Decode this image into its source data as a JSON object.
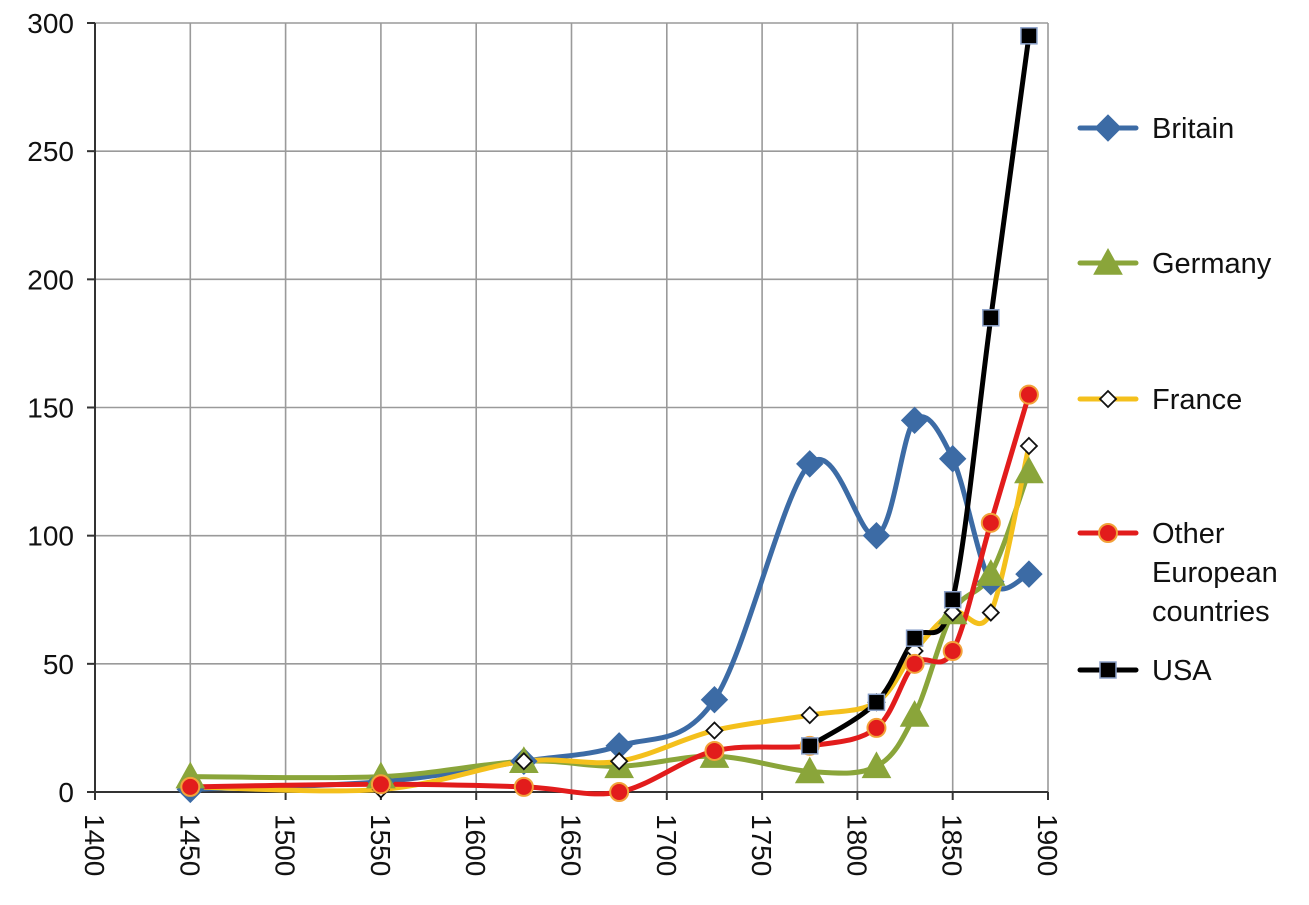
{
  "chart_data": {
    "type": "line",
    "title": "",
    "xlabel": "",
    "ylabel": "",
    "xlim": [
      1400,
      1900
    ],
    "ylim": [
      0,
      300
    ],
    "x_ticks": [
      1400,
      1450,
      1500,
      1550,
      1600,
      1650,
      1700,
      1750,
      1800,
      1850,
      1900
    ],
    "y_ticks": [
      0,
      50,
      100,
      150,
      200,
      250,
      300
    ],
    "grid": true,
    "smooth": true,
    "legend_position": "right",
    "series": [
      {
        "name": "Britain",
        "color": "#3c6ba5",
        "marker": "diamond",
        "x": [
          1450,
          1550,
          1625,
          1675,
          1725,
          1775,
          1810,
          1830,
          1850,
          1870,
          1890
        ],
        "y": [
          1,
          4,
          12,
          18,
          36,
          128,
          100,
          145,
          130,
          82,
          85
        ]
      },
      {
        "name": "Germany",
        "color": "#8aa53a",
        "marker": "triangle",
        "x": [
          1450,
          1550,
          1625,
          1675,
          1725,
          1775,
          1810,
          1830,
          1850,
          1870,
          1890
        ],
        "y": [
          6,
          6,
          12,
          10,
          14,
          8,
          10,
          30,
          70,
          85,
          125
        ]
      },
      {
        "name": "France",
        "color": "#f4c01c",
        "marker": "open-diamond",
        "x": [
          1450,
          1550,
          1625,
          1675,
          1725,
          1775,
          1810,
          1830,
          1850,
          1870,
          1890
        ],
        "y": [
          2,
          1,
          12,
          12,
          24,
          30,
          35,
          55,
          70,
          70,
          135
        ]
      },
      {
        "name": "Other European countries",
        "label_lines": [
          "Other",
          "European",
          "countries"
        ],
        "color": "#e21c1c",
        "marker": "circle",
        "x": [
          1450,
          1550,
          1625,
          1675,
          1725,
          1775,
          1810,
          1830,
          1850,
          1870,
          1890
        ],
        "y": [
          2,
          3,
          2,
          0,
          16,
          18,
          25,
          50,
          55,
          105,
          155
        ]
      },
      {
        "name": "USA",
        "color": "#000000",
        "marker": "square",
        "x": [
          1775,
          1810,
          1830,
          1850,
          1870,
          1890
        ],
        "y": [
          18,
          35,
          60,
          75,
          185,
          295
        ]
      }
    ]
  }
}
